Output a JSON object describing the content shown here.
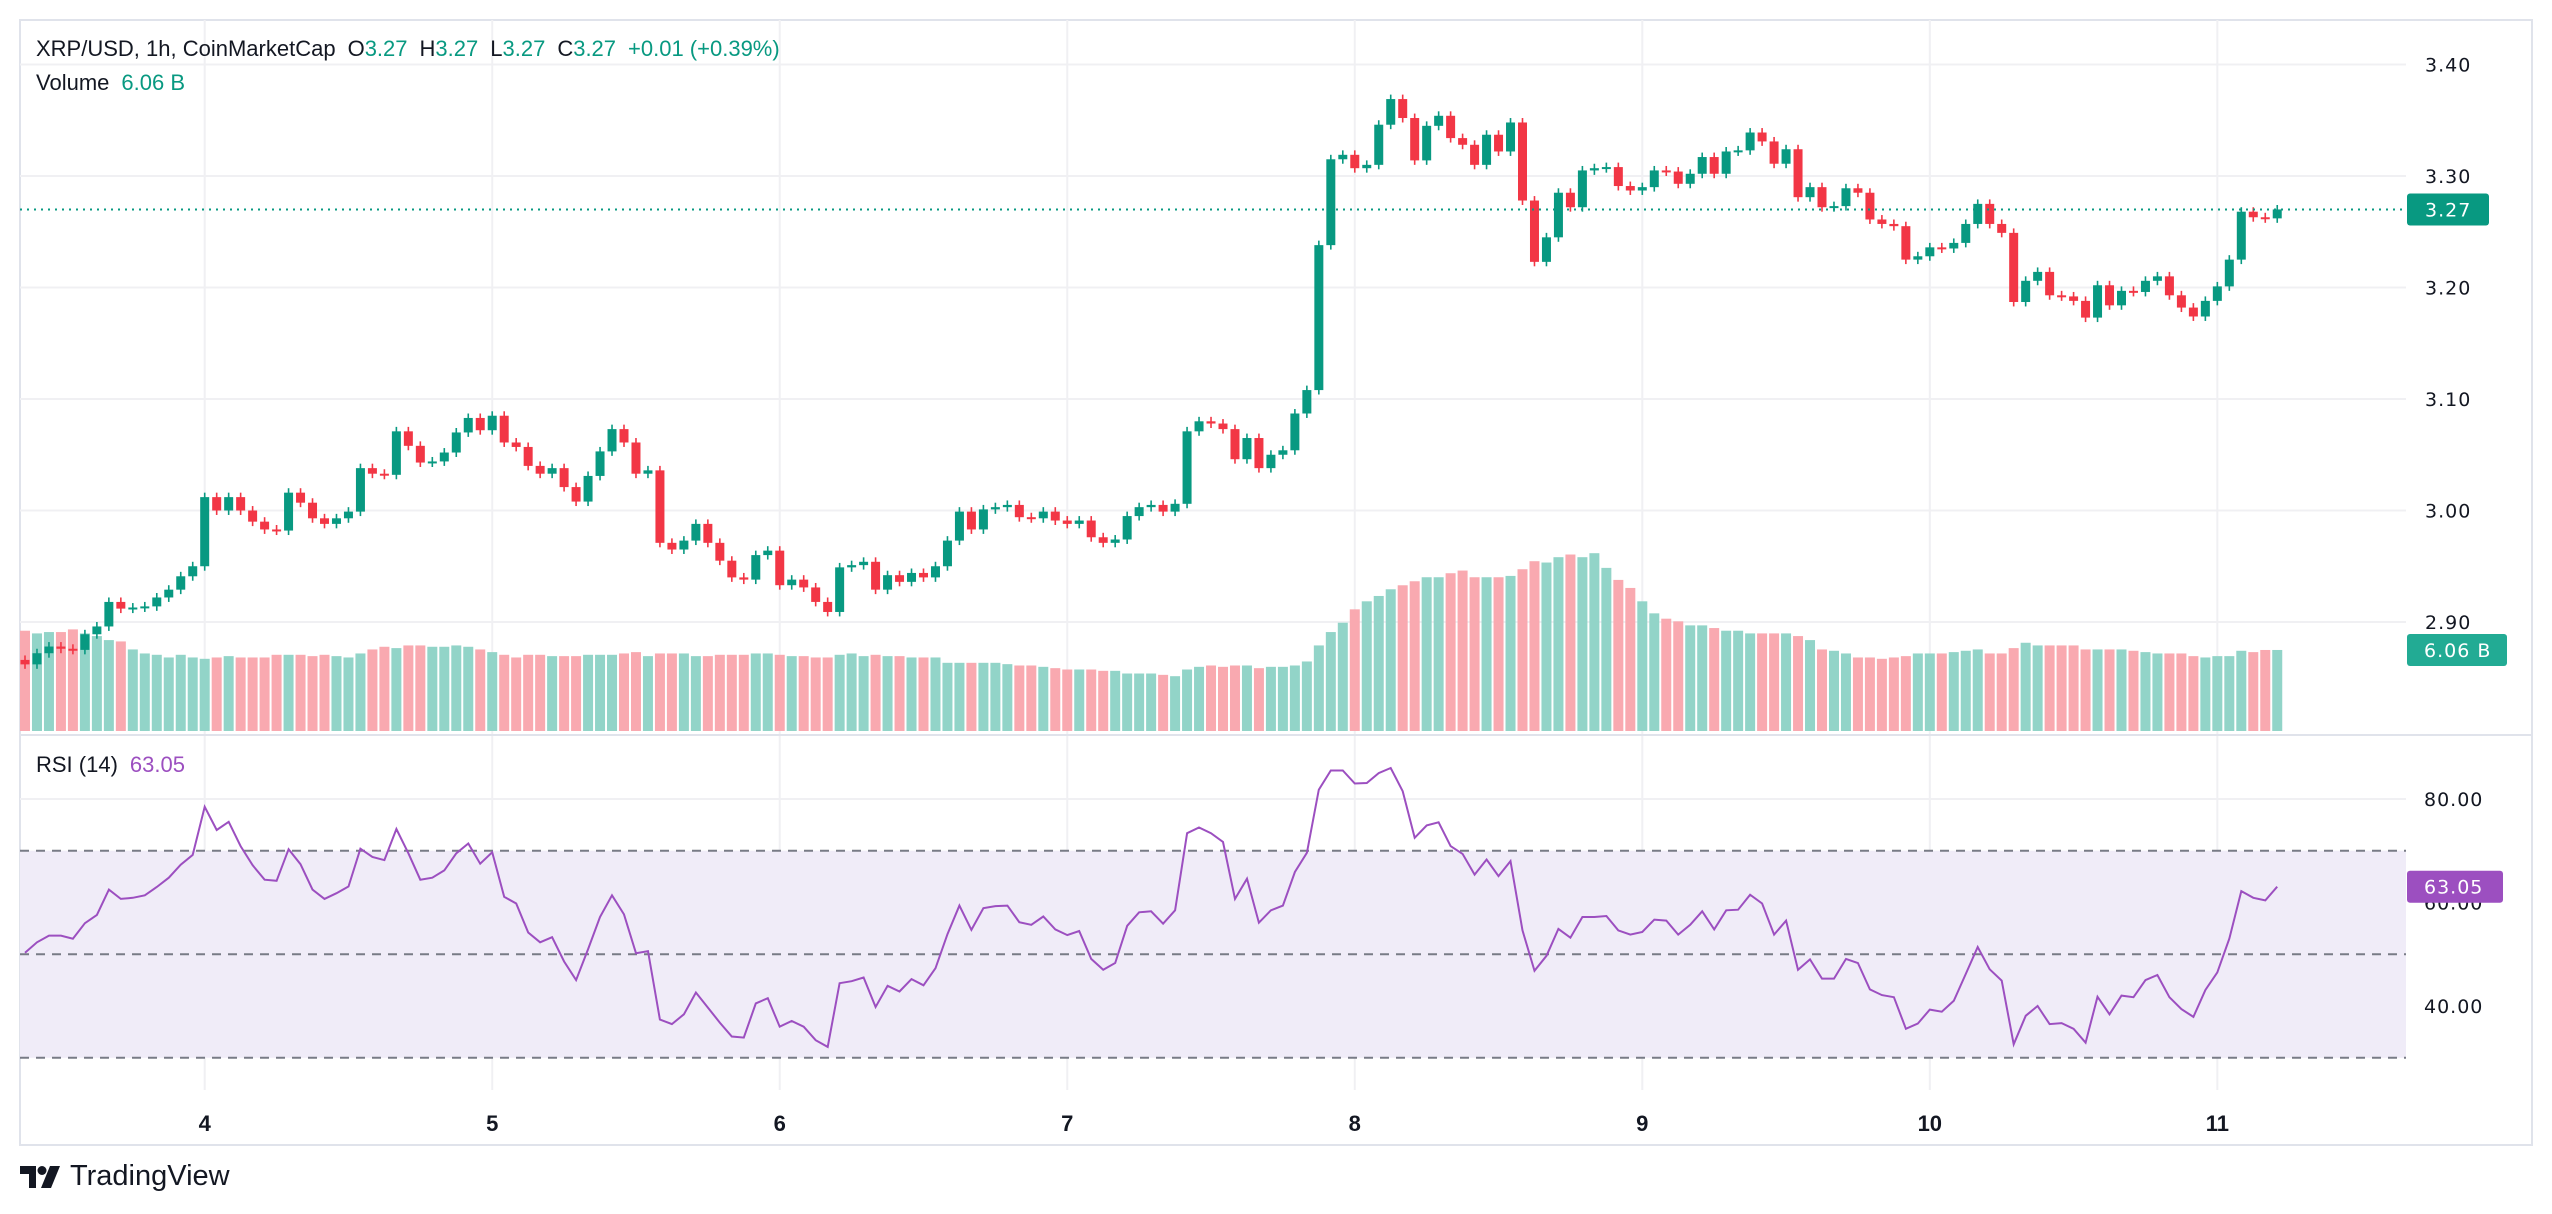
{
  "header": {
    "symbol": "XRP/USD, 1h, CoinMarketCap",
    "o_label": "O",
    "o_value": "3.27",
    "h_label": "H",
    "h_value": "3.27",
    "l_label": "L",
    "l_value": "3.27",
    "c_label": "C",
    "c_value": "3.27",
    "change": "+0.01 (+0.39%)",
    "volume_label": "Volume",
    "volume_value": "6.06 B"
  },
  "rsi_legend": {
    "label": "RSI (14)",
    "value": "63.05"
  },
  "badges": {
    "price": "3.27",
    "volume": "6.06 B",
    "rsi": "63.05"
  },
  "branding": {
    "logo_text": "TradingView"
  },
  "colors": {
    "up": "#089981",
    "down": "#F23645",
    "volume_up": "#92D4C8",
    "volume_down": "#F9A9B0",
    "rsi": "#9C4FC0",
    "rsi_band": "#F0ECF8",
    "grid": "#F0F0F3"
  },
  "chart_data": {
    "type": "candlestick",
    "title": "XRP/USD, 1h, CoinMarketCap",
    "interval": "1h",
    "first_open": 2.866,
    "last_price": 3.27,
    "price_axis": {
      "ticks": [
        "3.40",
        "3.30",
        "3.20",
        "3.10",
        "3.00",
        "2.90"
      ],
      "range": [
        2.8,
        3.42
      ]
    },
    "x_ticks": [
      {
        "label": "4",
        "index": 15
      },
      {
        "label": "5",
        "index": 39
      },
      {
        "label": "6",
        "index": 63
      },
      {
        "label": "7",
        "index": 87
      },
      {
        "label": "8",
        "index": 111
      },
      {
        "label": "9",
        "index": 135
      },
      {
        "label": "10",
        "index": 159
      },
      {
        "label": "11",
        "index": 183
      }
    ],
    "close": [
      2.862,
      2.872,
      2.878,
      2.876,
      2.875,
      2.889,
      2.896,
      2.918,
      2.912,
      2.913,
      2.914,
      2.922,
      2.929,
      2.941,
      2.95,
      3.012,
      3.0,
      3.012,
      3.0,
      2.99,
      2.983,
      2.982,
      3.016,
      3.007,
      2.993,
      2.988,
      2.993,
      2.999,
      3.038,
      3.033,
      3.032,
      3.071,
      3.058,
      3.043,
      3.044,
      3.052,
      3.07,
      3.083,
      3.072,
      3.085,
      3.061,
      3.057,
      3.04,
      3.033,
      3.038,
      3.021,
      3.008,
      3.031,
      3.053,
      3.073,
      3.061,
      3.033,
      3.036,
      2.971,
      2.965,
      2.973,
      2.988,
      2.971,
      2.955,
      2.94,
      2.938,
      2.96,
      2.964,
      2.933,
      2.938,
      2.931,
      2.918,
      2.909,
      2.949,
      2.951,
      2.954,
      2.929,
      2.942,
      2.936,
      2.944,
      2.94,
      2.95,
      2.973,
      2.999,
      2.983,
      3.001,
      3.003,
      3.005,
      2.994,
      2.993,
      2.999,
      2.991,
      2.988,
      2.991,
      2.976,
      2.971,
      2.974,
      2.995,
      3.003,
      3.005,
      2.999,
      3.006,
      3.071,
      3.08,
      3.078,
      3.073,
      3.046,
      3.065,
      3.038,
      3.05,
      3.054,
      3.087,
      3.108,
      3.238,
      3.315,
      3.319,
      3.307,
      3.31,
      3.346,
      3.369,
      3.352,
      3.314,
      3.345,
      3.354,
      3.334,
      3.328,
      3.31,
      3.337,
      3.322,
      3.348,
      3.278,
      3.223,
      3.245,
      3.285,
      3.272,
      3.305,
      3.307,
      3.308,
      3.291,
      3.287,
      3.29,
      3.305,
      3.304,
      3.293,
      3.302,
      3.317,
      3.302,
      3.322,
      3.323,
      3.339,
      3.331,
      3.311,
      3.324,
      3.281,
      3.29,
      3.272,
      3.273,
      3.289,
      3.285,
      3.261,
      3.257,
      3.255,
      3.225,
      3.228,
      3.236,
      3.235,
      3.24,
      3.257,
      3.275,
      3.257,
      3.249,
      3.187,
      3.206,
      3.214,
      3.193,
      3.192,
      3.188,
      3.173,
      3.202,
      3.184,
      3.197,
      3.196,
      3.206,
      3.21,
      3.193,
      3.182,
      3.174,
      3.188,
      3.201,
      3.225,
      3.268,
      3.263,
      3.262,
      3.27
    ],
    "volume_billions": [
      7.5,
      7.3,
      7.4,
      7.4,
      7.6,
      7.3,
      7.1,
      6.8,
      6.7,
      6.1,
      5.8,
      5.7,
      5.5,
      5.7,
      5.5,
      5.4,
      5.5,
      5.6,
      5.5,
      5.5,
      5.5,
      5.7,
      5.7,
      5.7,
      5.6,
      5.7,
      5.6,
      5.5,
      5.8,
      6.1,
      6.3,
      6.2,
      6.4,
      6.4,
      6.3,
      6.3,
      6.4,
      6.3,
      6.1,
      5.9,
      5.7,
      5.5,
      5.7,
      5.7,
      5.6,
      5.6,
      5.6,
      5.7,
      5.7,
      5.7,
      5.8,
      5.9,
      5.6,
      5.8,
      5.8,
      5.8,
      5.6,
      5.6,
      5.7,
      5.7,
      5.7,
      5.8,
      5.8,
      5.7,
      5.6,
      5.6,
      5.5,
      5.5,
      5.7,
      5.8,
      5.6,
      5.7,
      5.6,
      5.6,
      5.5,
      5.5,
      5.5,
      5.1,
      5.1,
      5.1,
      5.1,
      5.1,
      5.0,
      4.9,
      4.9,
      4.8,
      4.7,
      4.6,
      4.6,
      4.6,
      4.5,
      4.5,
      4.3,
      4.3,
      4.3,
      4.2,
      4.1,
      4.6,
      4.8,
      4.9,
      4.8,
      4.9,
      4.9,
      4.7,
      4.8,
      4.8,
      4.9,
      5.2,
      6.4,
      7.4,
      8.1,
      9.1,
      9.7,
      10.1,
      10.6,
      10.9,
      11.2,
      11.5,
      11.5,
      11.8,
      12.0,
      11.5,
      11.5,
      11.5,
      11.6,
      12.1,
      12.7,
      12.6,
      13.0,
      13.2,
      13.0,
      13.3,
      12.2,
      11.3,
      10.7,
      9.7,
      8.8,
      8.4,
      8.2,
      7.9,
      7.9,
      7.7,
      7.5,
      7.5,
      7.3,
      7.3,
      7.3,
      7.3,
      7.1,
      6.8,
      6.1,
      6.0,
      5.8,
      5.5,
      5.5,
      5.4,
      5.5,
      5.6,
      5.8,
      5.8,
      5.8,
      5.9,
      6.0,
      6.1,
      5.8,
      5.8,
      6.2,
      6.6,
      6.4,
      6.4,
      6.4,
      6.4,
      6.1,
      6.1,
      6.1,
      6.1,
      6.0,
      5.9,
      5.8,
      5.8,
      5.8,
      5.6,
      5.5,
      5.6,
      5.6,
      6.0,
      5.9,
      6.06,
      6.06
    ],
    "rsi": {
      "period": 14,
      "ticks": [
        "80.00",
        "60.00",
        "40.00"
      ],
      "levels": [
        70,
        50,
        30
      ],
      "values": [
        50.3,
        52.3,
        53.6,
        53.6,
        53.0,
        56.0,
        57.6,
        62.5,
        60.7,
        60.9,
        61.4,
        63.0,
        64.8,
        67.3,
        69.2,
        78.5,
        74.0,
        75.6,
        70.9,
        67.2,
        64.4,
        64.2,
        70.3,
        67.4,
        62.5,
        60.7,
        61.8,
        63.1,
        70.4,
        68.8,
        68.2,
        74.2,
        69.5,
        64.4,
        64.8,
        66.2,
        69.5,
        71.4,
        67.5,
        69.7,
        61.1,
        59.8,
        54.2,
        52.3,
        53.3,
        48.6,
        45.0,
        51.0,
        57.2,
        61.4,
        57.7,
        50.2,
        50.6,
        37.4,
        36.5,
        38.4,
        42.6,
        39.7,
        36.8,
        34.1,
        33.9,
        40.5,
        41.5,
        36.0,
        37.1,
        36.0,
        33.4,
        32.1,
        44.4,
        44.8,
        45.5,
        39.8,
        43.9,
        42.8,
        45.2,
        44.0,
        47.3,
        53.9,
        59.4,
        54.7,
        58.9,
        59.3,
        59.4,
        56.2,
        55.7,
        57.3,
        54.8,
        53.7,
        54.5,
        49.1,
        47.0,
        48.3,
        55.5,
        58.1,
        58.3,
        55.9,
        58.5,
        73.4,
        74.5,
        73.4,
        71.7,
        60.7,
        64.6,
        56.1,
        58.5,
        59.4,
        65.9,
        69.6,
        81.8,
        85.5,
        85.5,
        83.0,
        83.1,
        85.0,
        86.0,
        81.5,
        72.5,
        74.9,
        75.5,
        70.9,
        69.4,
        65.4,
        68.3,
        65.1,
        68.0,
        54.6,
        46.8,
        49.7,
        54.9,
        53.2,
        57.2,
        57.2,
        57.4,
        54.6,
        53.8,
        54.3,
        56.7,
        56.5,
        53.8,
        55.7,
        58.3,
        54.8,
        58.5,
        58.6,
        61.5,
        59.8,
        53.8,
        56.5,
        47.0,
        49.0,
        45.3,
        45.3,
        49.1,
        48.3,
        43.2,
        42.1,
        41.7,
        35.6,
        36.6,
        39.3,
        38.9,
        41.0,
        46.2,
        51.4,
        47.1,
        44.9,
        32.6,
        38.1,
        40.0,
        36.5,
        36.7,
        35.6,
        32.9,
        41.8,
        38.4,
        42.0,
        41.7,
        45.0,
        46.0,
        41.7,
        39.4,
        37.9,
        43.1,
        46.5,
        53.0,
        62.2,
        60.9,
        60.4,
        63.05
      ]
    }
  }
}
